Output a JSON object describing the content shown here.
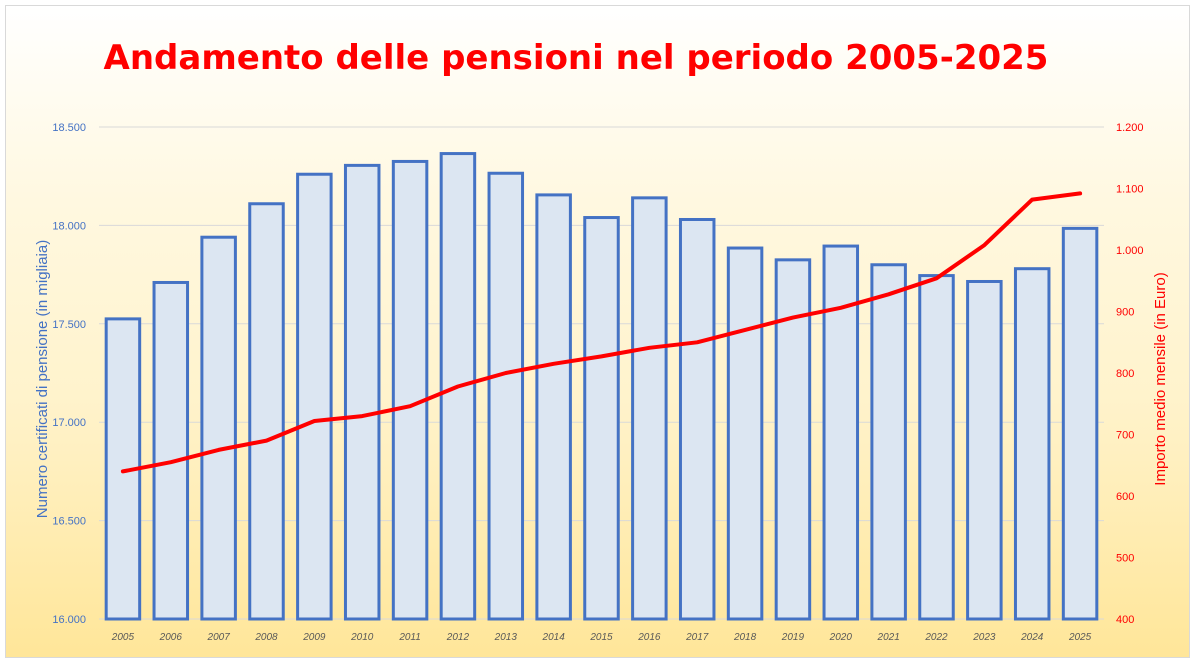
{
  "chart_data": {
    "type": "bar",
    "title": "Andamento delle pensioni nel periodo 2005-2025",
    "categories": [
      "2005",
      "2006",
      "2007",
      "2008",
      "2009",
      "2010",
      "2011",
      "2012",
      "2013",
      "2014",
      "2015",
      "2016",
      "2017",
      "2018",
      "2019",
      "2020",
      "2021",
      "2022",
      "2023",
      "2024",
      "2025"
    ],
    "series": [
      {
        "type": "bar",
        "axis": "left",
        "color": "#4472c4",
        "fill": "#dce6f2",
        "values": [
          17525,
          17710,
          17940,
          18110,
          18260,
          18305,
          18325,
          18365,
          18265,
          18155,
          18040,
          18140,
          18030,
          17885,
          17825,
          17895,
          17800,
          17745,
          17715,
          17780,
          17985
        ]
      },
      {
        "type": "line",
        "axis": "right",
        "color": "#ff0000",
        "values": [
          640,
          655,
          675,
          690,
          722,
          730,
          746,
          778,
          800,
          815,
          827,
          841,
          850,
          870,
          890,
          906,
          928,
          954,
          1008,
          1082,
          1092
        ]
      }
    ],
    "ylabel": "Numero certificati di pensione (in migliaia)",
    "ylabel_right": "Importo medio mensile (in Euro)",
    "ylim": [
      16000,
      18500
    ],
    "ylim_right": [
      400,
      1200
    ],
    "yticks": [
      "16.000",
      "16.500",
      "17.000",
      "17.500",
      "18.000",
      "18.500"
    ],
    "yticks_right": [
      "400",
      "500",
      "600",
      "700",
      "800",
      "900",
      "1.000",
      "1.100",
      "1.200"
    ],
    "grid": true,
    "legend": "none"
  }
}
